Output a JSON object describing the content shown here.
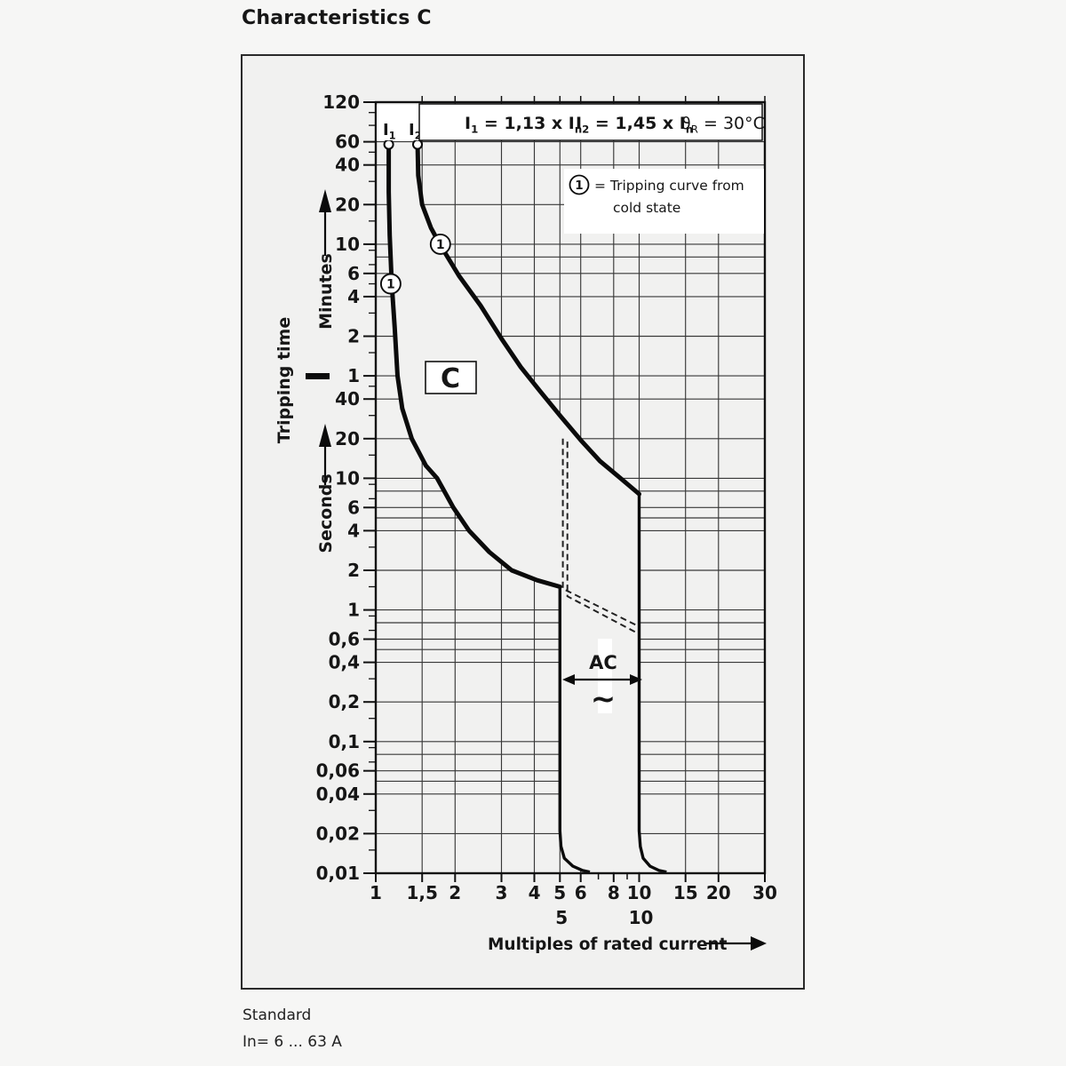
{
  "page": {
    "title": "Characteristics C",
    "footer_line1": "Standard",
    "footer_line2": "In= 6 ... 63 A"
  },
  "colors": {
    "page_bg": "#f6f6f5",
    "panel_bg": "#f1f1f0",
    "grid_line": "#383838",
    "axis_line": "#111111",
    "curve": "#0b0b0b",
    "white": "#ffffff",
    "text": "#161616"
  },
  "chart_data": {
    "type": "line",
    "title": "Characteristics C",
    "x_axis": {
      "label": "Multiples of rated current",
      "scale": "log",
      "min": 1,
      "max": 30,
      "ticks": [
        {
          "v": 1,
          "label": "1"
        },
        {
          "v": 1.5,
          "label": "1,5"
        },
        {
          "v": 2,
          "label": "2"
        },
        {
          "v": 3,
          "label": "3"
        },
        {
          "v": 4,
          "label": "4"
        },
        {
          "v": 5,
          "label": "5"
        },
        {
          "v": 6,
          "label": "6"
        },
        {
          "v": 8,
          "label": "8"
        },
        {
          "v": 10,
          "label": "10"
        },
        {
          "v": 15,
          "label": "15"
        },
        {
          "v": 20,
          "label": "20"
        },
        {
          "v": 30,
          "label": "30"
        }
      ],
      "secondary_ticks": [
        {
          "v": 5,
          "label": "5"
        },
        {
          "v": 10,
          "label": "10"
        }
      ],
      "minor_ticks": [
        7,
        9
      ],
      "gridlines": [
        1.5,
        2,
        3,
        4,
        5,
        6,
        8,
        10,
        15,
        20
      ]
    },
    "y_axis": {
      "label": "Tripping time",
      "unit_upper": "Minutes",
      "unit_lower": "Seconds",
      "scale": "log",
      "min_seconds": 0.01,
      "max_seconds": 7200,
      "minute_ticks": [
        {
          "minutes": 120,
          "label": "120"
        },
        {
          "minutes": 60,
          "label": "60"
        },
        {
          "minutes": 40,
          "label": "40"
        },
        {
          "minutes": 20,
          "label": "20"
        },
        {
          "minutes": 10,
          "label": "10"
        },
        {
          "minutes": 6,
          "label": "6"
        },
        {
          "minutes": 4,
          "label": "4"
        },
        {
          "minutes": 2,
          "label": "2"
        },
        {
          "minutes": 1,
          "label": "1"
        }
      ],
      "second_ticks": [
        {
          "seconds": 40,
          "label": "40"
        },
        {
          "seconds": 20,
          "label": "20"
        },
        {
          "seconds": 10,
          "label": "10"
        },
        {
          "seconds": 6,
          "label": "6"
        },
        {
          "seconds": 4,
          "label": "4"
        },
        {
          "seconds": 2,
          "label": "2"
        },
        {
          "seconds": 1,
          "label": "1"
        },
        {
          "seconds": 0.6,
          "label": "0,6"
        },
        {
          "seconds": 0.4,
          "label": "0,4"
        },
        {
          "seconds": 0.2,
          "label": "0,2"
        },
        {
          "seconds": 0.1,
          "label": "0,1"
        },
        {
          "seconds": 0.06,
          "label": "0,06"
        },
        {
          "seconds": 0.04,
          "label": "0,04"
        },
        {
          "seconds": 0.02,
          "label": "0,02"
        },
        {
          "seconds": 0.01,
          "label": "0,01"
        }
      ],
      "gridline_values_seconds": [
        0.02,
        0.04,
        0.05,
        0.06,
        0.08,
        0.1,
        0.2,
        0.4,
        0.5,
        0.6,
        0.8,
        1,
        2,
        4,
        5,
        6,
        8,
        10,
        20,
        40,
        60,
        120,
        240,
        360,
        480,
        600,
        1200,
        2400,
        3600
      ],
      "minor_tick_values_seconds": [
        0.015,
        0.03,
        0.07,
        0.09,
        0.15,
        0.3,
        0.7,
        0.9,
        1.5,
        3,
        7,
        9,
        15,
        30,
        50,
        90,
        180,
        300,
        420,
        540,
        900,
        1800,
        3000,
        4800,
        6000
      ]
    },
    "series": [
      {
        "name": "lower-limit-tripping-curve-cold-state",
        "points_main": [
          [
            1.12,
            3600
          ],
          [
            1.12,
            1500
          ],
          [
            1.13,
            700
          ],
          [
            1.15,
            300
          ],
          [
            1.18,
            140
          ],
          [
            1.21,
            60
          ],
          [
            1.26,
            34
          ],
          [
            1.37,
            20
          ],
          [
            1.55,
            12.5
          ],
          [
            1.71,
            10
          ],
          [
            1.97,
            6
          ],
          [
            2.26,
            4
          ],
          [
            2.7,
            2.75
          ],
          [
            3.28,
            2
          ],
          [
            4.1,
            1.68
          ],
          [
            5.0,
            1.5
          ]
        ],
        "points_drop": [
          [
            5.0,
            1.5
          ],
          [
            5.0,
            0.021
          ],
          [
            5.05,
            0.016
          ],
          [
            5.2,
            0.013
          ],
          [
            5.6,
            0.0113
          ],
          [
            6.1,
            0.0105
          ],
          [
            6.5,
            0.0102
          ]
        ]
      },
      {
        "name": "upper-limit-tripping-curve-cold-state",
        "points_main": [
          [
            1.44,
            3600
          ],
          [
            1.45,
            2000
          ],
          [
            1.5,
            1200
          ],
          [
            1.62,
            800
          ],
          [
            1.75,
            600
          ],
          [
            2.07,
            345
          ],
          [
            2.5,
            205
          ],
          [
            3.0,
            115
          ],
          [
            3.55,
            70
          ],
          [
            4.2,
            46
          ],
          [
            5.0,
            30
          ],
          [
            6.0,
            19.5
          ],
          [
            7.1,
            13.5
          ],
          [
            8.5,
            10
          ],
          [
            10.0,
            7.6
          ]
        ],
        "points_drop": [
          [
            10.0,
            7.6
          ],
          [
            10.0,
            0.021
          ],
          [
            10.1,
            0.016
          ],
          [
            10.35,
            0.013
          ],
          [
            11.0,
            0.0113
          ],
          [
            11.9,
            0.0105
          ],
          [
            12.7,
            0.0102
          ]
        ]
      }
    ],
    "dashed_segments": [
      {
        "points": [
          [
            5.13,
            20
          ],
          [
            5.13,
            1.45
          ],
          [
            9.7,
            0.77
          ]
        ]
      },
      {
        "points": [
          [
            5.34,
            19
          ],
          [
            5.34,
            1.27
          ],
          [
            9.95,
            0.66
          ]
        ]
      }
    ],
    "markers": {
      "curve_number": "1",
      "positions": [
        [
          1.14,
          300
        ],
        [
          1.76,
          600
        ]
      ],
      "start_circles": [
        [
          1.12,
          3600
        ],
        [
          1.44,
          3600
        ]
      ]
    },
    "band_label": "C",
    "ac_label": {
      "text": "AC",
      "symbol": "~"
    },
    "legend": {
      "items": [
        [
          "I",
          {
            "sub": "1"
          },
          " = 1,13 x I",
          {
            "sub": "n"
          }
        ],
        [
          "I",
          {
            "sub": "2"
          },
          " = 1,45 x I",
          {
            "sub": "n"
          }
        ],
        [
          "ϑ",
          {
            "sub": "R"
          },
          " = 30°C"
        ]
      ]
    },
    "note": {
      "marker": "1",
      "line1": "= Tripping curve from",
      "line2": "cold state"
    },
    "curve_top_labels": [
      [
        "I",
        {
          "sub": "1"
        }
      ],
      [
        "I",
        {
          "sub": "2"
        }
      ]
    ]
  }
}
